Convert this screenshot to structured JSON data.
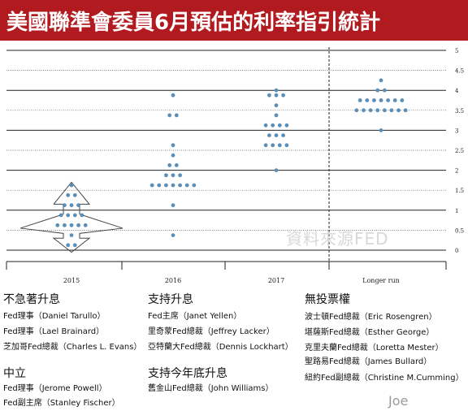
{
  "title": "美國聯準會委員6月預估的利率指引統計",
  "watermark": "資料來源FED",
  "signature": "Joe",
  "chart_data": {
    "type": "scatter",
    "categories": [
      "2015",
      "2016",
      "2017",
      "Longer run"
    ],
    "ylim": [
      0,
      5
    ],
    "yticks": [
      "0",
      "0.5",
      "1",
      "1.5",
      "2",
      "2.5",
      "3",
      "3.5",
      "4",
      "4.5",
      "5"
    ],
    "grid": true,
    "series": [
      {
        "category": "2015",
        "points": [
          {
            "y": 0.125,
            "count": 2
          },
          {
            "y": 0.375,
            "count": 1
          },
          {
            "y": 0.625,
            "count": 5
          },
          {
            "y": 0.875,
            "count": 4
          },
          {
            "y": 1.125,
            "count": 3
          },
          {
            "y": 1.375,
            "count": 2
          },
          {
            "y": 1.625,
            "count": 1
          }
        ]
      },
      {
        "category": "2016",
        "points": [
          {
            "y": 0.375,
            "count": 1
          },
          {
            "y": 1.125,
            "count": 1
          },
          {
            "y": 1.625,
            "count": 7
          },
          {
            "y": 1.875,
            "count": 3
          },
          {
            "y": 2.125,
            "count": 2
          },
          {
            "y": 2.375,
            "count": 1
          },
          {
            "y": 2.625,
            "count": 1
          },
          {
            "y": 3.375,
            "count": 2
          },
          {
            "y": 3.875,
            "count": 1
          }
        ]
      },
      {
        "category": "2017",
        "points": [
          {
            "y": 2.0,
            "count": 1
          },
          {
            "y": 2.625,
            "count": 4
          },
          {
            "y": 2.875,
            "count": 3
          },
          {
            "y": 3.125,
            "count": 4
          },
          {
            "y": 3.375,
            "count": 1
          },
          {
            "y": 3.625,
            "count": 1
          },
          {
            "y": 3.875,
            "count": 3
          },
          {
            "y": 4.0,
            "count": 1
          }
        ]
      },
      {
        "category": "Longer run",
        "points": [
          {
            "y": 3.0,
            "count": 1
          },
          {
            "y": 3.5,
            "count": 8
          },
          {
            "y": 3.75,
            "count": 7
          },
          {
            "y": 4.0,
            "count": 2
          },
          {
            "y": 4.25,
            "count": 1
          }
        ]
      }
    ]
  },
  "groups": {
    "no_hurry": {
      "title": "不急著升息",
      "members": [
        "Fed理事（Daniel Tarullo）",
        "Fed理事（Lael Brainard）",
        "芝加哥Fed總裁（Charles L. Evans）"
      ]
    },
    "neutral": {
      "title": "中立",
      "members": [
        "Fed理事（Jerome Powell）",
        "Fed副主席（Stanley Fischer）"
      ]
    },
    "support": {
      "title": "支持升息",
      "members": [
        "Fed主席（Janet Yellen）",
        "里奇蒙Fed總裁（Jeffrey Lacker）",
        "亞特蘭大Fed總裁（Dennis Lockhart）"
      ]
    },
    "support_this_year": {
      "title": "支持今年底升息",
      "members": [
        "舊金山Fed總裁（John Williams）"
      ]
    },
    "non_voting": {
      "title": "無投票權",
      "members": [
        "波士頓Fed總裁（Eric Rosengren）",
        "堪薩斯Fed總裁（Esther George）",
        "克里夫蘭Fed總裁（Loretta Mester）",
        "聖路易Fed總裁（James Bullard）",
        "紐約Fed副總裁（Christine M.Cumming）"
      ]
    }
  },
  "colors": {
    "title_bg": "#b11a1f",
    "dot": "#5b8fb8"
  }
}
